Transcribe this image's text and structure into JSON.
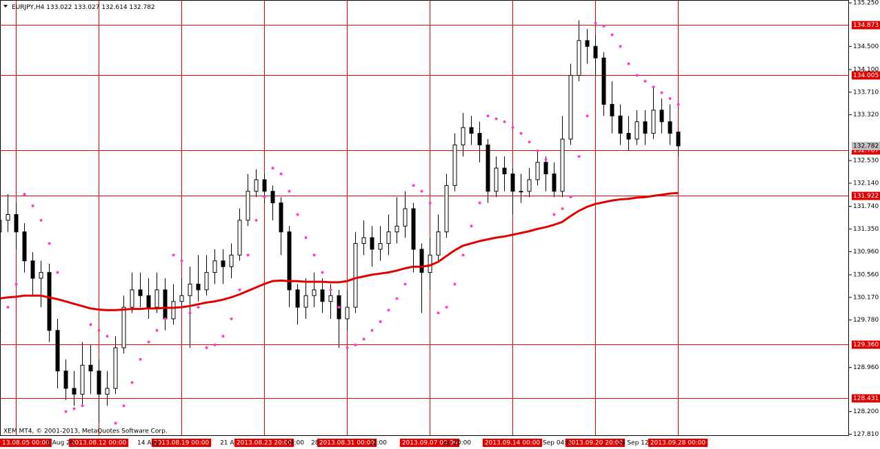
{
  "chart_data": {
    "type": "candlestick",
    "symbol": "EURJPY,H4",
    "copyright": "XEM MT4, © 2001-2013, MetaQuotes Software Corp.",
    "ylim": [
      127.78,
      135.3
    ],
    "yticks": [
      {
        "value": 135.25,
        "label": "135.250"
      },
      {
        "value": 134.5,
        "label": "134.500"
      },
      {
        "value": 134.1,
        "label": "134.100"
      },
      {
        "value": 133.71,
        "label": "133.710"
      },
      {
        "value": 133.32,
        "label": "133.320"
      },
      {
        "value": 132.53,
        "label": "132.530"
      },
      {
        "value": 132.14,
        "label": "132.140"
      },
      {
        "value": 131.74,
        "label": "131.740"
      },
      {
        "value": 131.35,
        "label": "131.350"
      },
      {
        "value": 130.96,
        "label": "130.960"
      },
      {
        "value": 130.56,
        "label": "130.560"
      },
      {
        "value": 130.17,
        "label": "130.170"
      },
      {
        "value": 129.78,
        "label": "129.780"
      },
      {
        "value": 128.96,
        "label": "128.960"
      },
      {
        "value": 128.2,
        "label": "128.200"
      },
      {
        "value": 127.81,
        "label": "127.810"
      }
    ],
    "hlines": [
      134.873,
      134.005,
      132.707,
      131.922,
      {
        "value": 129.36,
        "label": "129.360"
      },
      128.431
    ],
    "line_color": "#e00000",
    "sar_color": "#ff3fbf",
    "categories": [
      null,
      null,
      null,
      null,
      null,
      null,
      "6 Aug 20",
      null,
      null,
      null,
      null,
      null,
      null,
      null,
      null,
      null,
      null,
      "14 Aug",
      null,
      null,
      null,
      null,
      null,
      null,
      null,
      null,
      null,
      "21 A",
      null,
      null,
      null,
      null,
      null,
      null,
      null,
      "04:00",
      null,
      null,
      "28",
      null,
      null,
      null,
      null,
      null,
      null,
      "12:00",
      null,
      null,
      null,
      null,
      null,
      null,
      null,
      null,
      "ep 20:00",
      null,
      null,
      null,
      null,
      null,
      null,
      null,
      null,
      null,
      null,
      null,
      "Sep 04:0",
      null,
      null,
      null,
      null,
      null,
      null,
      null,
      null,
      "24 Sep 12:",
      null,
      null,
      null,
      null,
      null,
      null,
      null
    ],
    "vlines": [
      null,
      null,
      "13.08.05 00:00",
      null,
      null,
      null,
      null,
      null,
      null,
      null,
      null,
      null,
      "2013.08.12 00:00",
      null,
      null,
      null,
      null,
      null,
      null,
      null,
      null,
      null,
      "2013.08.19 00:00",
      null,
      null,
      null,
      null,
      null,
      null,
      null,
      null,
      null,
      "2013.08.23 20:00",
      null,
      null,
      null,
      null,
      null,
      null,
      null,
      null,
      null,
      "2013.08.31 00:00",
      null,
      null,
      null,
      null,
      null,
      null,
      null,
      null,
      null,
      "2013.09.07 00:00",
      null,
      null,
      null,
      null,
      null,
      null,
      null,
      null,
      null,
      "2013.09.14 00:00",
      null,
      null,
      null,
      null,
      null,
      null,
      null,
      null,
      null,
      "2013.09.20 20:00",
      null,
      null,
      null,
      null,
      null,
      null,
      null,
      null,
      null,
      "2013.09.28 00:00"
    ],
    "open": [
      131.3,
      131.5,
      131.6,
      131.3,
      130.8,
      130.5,
      130.6,
      129.6,
      128.9,
      128.6,
      128.5,
      129.0,
      128.9,
      128.5,
      128.6,
      129.3,
      130.0,
      130.3,
      130.2,
      130.0,
      130.3,
      129.8,
      130.1,
      130.2,
      130.4,
      130.3,
      130.6,
      130.8,
      130.7,
      130.9,
      131.5,
      132.0,
      132.2,
      132.0,
      131.8,
      131.3,
      130.3,
      130.0,
      130.2,
      130.3,
      130.1,
      130.2,
      129.8,
      130.0,
      131.1,
      131.2,
      131.0,
      131.1,
      131.3,
      131.4,
      131.7,
      131.0,
      130.6,
      130.9,
      131.3,
      132.1,
      132.8,
      133.1,
      133.0,
      132.8,
      132.0,
      132.4,
      132.3,
      132.0,
      132.0,
      132.2,
      132.5,
      132.3,
      132.0,
      132.9,
      134.0,
      134.6,
      134.5,
      134.3,
      133.5,
      133.3,
      133.0,
      132.9,
      133.2,
      133.0,
      133.4,
      133.2,
      133.022
    ],
    "high": [
      131.9,
      131.95,
      131.8,
      131.45,
      130.95,
      130.8,
      130.75,
      129.8,
      129.1,
      128.9,
      129.4,
      129.35,
      129.1,
      128.9,
      129.5,
      130.2,
      130.6,
      130.6,
      130.5,
      130.6,
      130.5,
      130.4,
      130.5,
      130.7,
      130.9,
      130.9,
      131.0,
      131.0,
      131.1,
      131.7,
      132.3,
      132.38,
      132.3,
      132.1,
      131.9,
      131.4,
      130.4,
      130.5,
      130.6,
      130.5,
      130.4,
      130.3,
      130.3,
      131.3,
      131.5,
      131.4,
      131.4,
      131.6,
      131.9,
      132.0,
      131.8,
      131.1,
      131.2,
      131.6,
      132.3,
      133.0,
      133.35,
      133.3,
      133.2,
      132.9,
      132.6,
      132.6,
      132.4,
      132.3,
      132.4,
      132.7,
      132.6,
      132.5,
      133.3,
      134.2,
      134.95,
      134.8,
      134.7,
      134.4,
      133.9,
      133.5,
      133.3,
      133.4,
      133.4,
      133.8,
      133.6,
      133.5,
      133.027
    ],
    "low": [
      131.1,
      131.3,
      131.0,
      130.6,
      130.2,
      130.0,
      129.4,
      128.6,
      128.4,
      128.3,
      128.3,
      128.5,
      128.0,
      128.3,
      128.5,
      129.2,
      129.9,
      130.0,
      129.8,
      129.9,
      129.6,
      129.7,
      130.0,
      129.3,
      130.1,
      130.2,
      130.4,
      130.4,
      130.5,
      130.8,
      131.4,
      131.9,
      131.8,
      131.5,
      130.9,
      130.0,
      129.7,
      129.8,
      130.0,
      129.9,
      129.8,
      129.3,
      129.6,
      129.9,
      130.9,
      130.7,
      130.8,
      130.9,
      131.1,
      131.2,
      130.6,
      129.9,
      130.3,
      130.8,
      131.2,
      132.0,
      132.6,
      132.8,
      132.5,
      131.8,
      131.9,
      132.0,
      131.6,
      131.8,
      131.9,
      132.1,
      132.0,
      131.9,
      131.9,
      132.8,
      133.9,
      134.2,
      134.0,
      133.3,
      133.0,
      132.8,
      132.7,
      132.8,
      132.8,
      132.9,
      133.0,
      132.8,
      132.614
    ],
    "close": [
      131.5,
      131.6,
      131.3,
      130.8,
      130.5,
      130.6,
      129.6,
      128.9,
      128.6,
      128.5,
      129.0,
      128.9,
      128.5,
      128.6,
      129.3,
      130.0,
      130.3,
      130.2,
      130.0,
      130.3,
      129.8,
      130.1,
      130.2,
      130.4,
      130.3,
      130.6,
      130.8,
      130.7,
      130.9,
      131.5,
      132.0,
      132.2,
      132.0,
      131.8,
      131.3,
      130.3,
      130.0,
      130.2,
      130.3,
      130.1,
      130.2,
      129.8,
      130.0,
      131.1,
      131.2,
      131.0,
      131.1,
      131.3,
      131.4,
      131.7,
      131.0,
      130.6,
      130.9,
      131.3,
      132.1,
      132.8,
      133.1,
      133.0,
      132.8,
      132.0,
      132.4,
      132.3,
      132.0,
      132.0,
      132.2,
      132.5,
      132.3,
      132.0,
      132.9,
      134.0,
      134.6,
      134.5,
      134.3,
      133.5,
      133.3,
      133.0,
      132.9,
      133.2,
      133.0,
      133.4,
      133.2,
      133.0,
      132.782
    ],
    "ma": [
      130.15,
      130.17,
      130.18,
      130.2,
      130.2,
      130.2,
      130.17,
      130.14,
      130.1,
      130.06,
      130.02,
      129.98,
      129.96,
      129.95,
      129.95,
      129.96,
      129.97,
      129.97,
      129.98,
      129.98,
      129.99,
      129.99,
      130.0,
      130.02,
      130.05,
      130.08,
      130.1,
      130.13,
      130.17,
      130.22,
      130.28,
      130.34,
      130.4,
      130.45,
      130.46,
      130.45,
      130.45,
      130.44,
      130.44,
      130.44,
      130.43,
      130.43,
      130.45,
      130.5,
      130.53,
      130.56,
      130.58,
      130.6,
      130.63,
      130.67,
      130.7,
      130.7,
      130.72,
      130.78,
      130.88,
      130.98,
      131.06,
      131.1,
      131.14,
      131.17,
      131.2,
      131.22,
      131.25,
      131.28,
      131.31,
      131.35,
      131.38,
      131.42,
      131.47,
      131.57,
      131.66,
      131.73,
      131.78,
      131.81,
      131.84,
      131.86,
      131.87,
      131.89,
      131.9,
      131.92,
      131.94,
      131.96,
      131.97
    ],
    "sar": [
      129.6,
      130.0,
      130.4,
      131.95,
      131.75,
      131.5,
      131.1,
      130.6,
      128.2,
      128.25,
      128.3,
      129.7,
      129.6,
      129.5,
      128.0,
      128.3,
      128.7,
      129.1,
      129.4,
      129.6,
      129.8,
      130.9,
      130.8,
      129.9,
      130.0,
      129.3,
      129.35,
      129.5,
      129.8,
      130.3,
      130.9,
      131.5,
      131.9,
      132.4,
      132.3,
      132.0,
      131.6,
      131.2,
      130.9,
      130.6,
      130.3,
      130.0,
      129.3,
      129.35,
      129.45,
      129.6,
      129.75,
      129.95,
      130.15,
      130.4,
      132.1,
      132.0,
      131.8,
      129.9,
      130.0,
      130.4,
      130.9,
      131.4,
      131.8,
      133.3,
      133.25,
      133.2,
      133.1,
      133.0,
      132.85,
      132.7,
      132.55,
      131.6,
      131.7,
      131.9,
      132.6,
      133.3,
      134.9,
      134.85,
      134.7,
      134.5,
      134.2,
      134.0,
      133.9,
      133.8,
      133.7,
      133.6,
      133.5
    ]
  }
}
